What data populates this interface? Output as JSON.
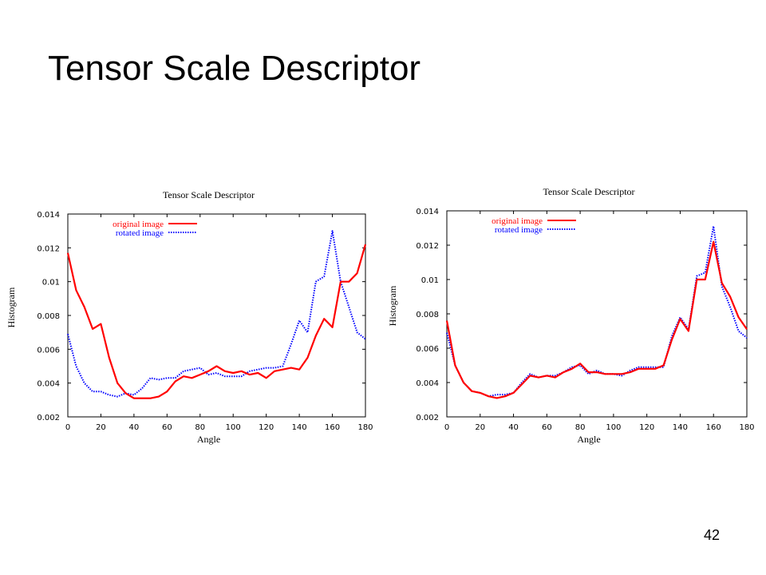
{
  "slide": {
    "title": "Tensor Scale Descriptor",
    "page_number": "42"
  },
  "colors": {
    "original": "#ff0000",
    "rotated": "#0000ff"
  },
  "chart_data": [
    {
      "type": "line",
      "title": "Tensor Scale Descriptor",
      "xlabel": "Angle",
      "ylabel": "Histogram",
      "xlim": [
        0,
        180
      ],
      "ylim": [
        0.002,
        0.014
      ],
      "xticks": [
        "0",
        "20",
        "40",
        "60",
        "80",
        "100",
        "120",
        "140",
        "160",
        "180"
      ],
      "yticks": [
        "0.002",
        "0.004",
        "0.006",
        "0.008",
        "0.01",
        "0.012",
        "0.014"
      ],
      "grid": false,
      "legend_position": "top-left",
      "x": [
        0,
        5,
        10,
        15,
        20,
        25,
        30,
        35,
        40,
        45,
        50,
        55,
        60,
        65,
        70,
        75,
        80,
        85,
        90,
        95,
        100,
        105,
        110,
        115,
        120,
        125,
        130,
        135,
        140,
        145,
        150,
        155,
        160,
        165,
        170,
        175,
        180
      ],
      "series": [
        {
          "name": "original image",
          "color": "#ff0000",
          "style": "solid",
          "values": [
            0.0117,
            0.0095,
            0.0085,
            0.0072,
            0.0075,
            0.0055,
            0.004,
            0.0034,
            0.0031,
            0.0031,
            0.0031,
            0.0032,
            0.0035,
            0.0041,
            0.0044,
            0.0043,
            0.0045,
            0.0047,
            0.005,
            0.0047,
            0.0046,
            0.0047,
            0.0045,
            0.0046,
            0.0043,
            0.0047,
            0.0048,
            0.0049,
            0.0048,
            0.0055,
            0.0068,
            0.0078,
            0.0073,
            0.01,
            0.01,
            0.0105,
            0.0122
          ]
        },
        {
          "name": "rotated image",
          "color": "#0000ff",
          "style": "dotted",
          "values": [
            0.0069,
            0.005,
            0.004,
            0.0035,
            0.0035,
            0.0033,
            0.0032,
            0.0034,
            0.0033,
            0.0037,
            0.0043,
            0.0042,
            0.0043,
            0.0043,
            0.0047,
            0.0048,
            0.0049,
            0.0045,
            0.0046,
            0.0044,
            0.0044,
            0.0044,
            0.0047,
            0.0048,
            0.0049,
            0.0049,
            0.005,
            0.0063,
            0.0077,
            0.007,
            0.01,
            0.0103,
            0.013,
            0.01,
            0.0085,
            0.007,
            0.0066
          ]
        }
      ]
    },
    {
      "type": "line",
      "title": "Tensor Scale Descriptor",
      "xlabel": "Angle",
      "ylabel": "Histogram",
      "xlim": [
        0,
        180
      ],
      "ylim": [
        0.002,
        0.014
      ],
      "xticks": [
        "0",
        "20",
        "40",
        "60",
        "80",
        "100",
        "120",
        "140",
        "160",
        "180"
      ],
      "yticks": [
        "0.002",
        "0.004",
        "0.006",
        "0.008",
        "0.01",
        "0.012",
        "0.014"
      ],
      "grid": false,
      "legend_position": "top-left",
      "x": [
        0,
        5,
        10,
        15,
        20,
        25,
        30,
        35,
        40,
        45,
        50,
        55,
        60,
        65,
        70,
        75,
        80,
        85,
        90,
        95,
        100,
        105,
        110,
        115,
        120,
        125,
        130,
        135,
        140,
        145,
        150,
        155,
        160,
        165,
        170,
        175,
        180
      ],
      "series": [
        {
          "name": "original image",
          "color": "#ff0000",
          "style": "solid",
          "values": [
            0.0076,
            0.005,
            0.004,
            0.0035,
            0.0034,
            0.0032,
            0.0031,
            0.0032,
            0.0034,
            0.0039,
            0.0044,
            0.0043,
            0.0044,
            0.0043,
            0.0046,
            0.0048,
            0.0051,
            0.0046,
            0.0046,
            0.0045,
            0.0045,
            0.0045,
            0.0046,
            0.0048,
            0.0048,
            0.0048,
            0.005,
            0.0065,
            0.0077,
            0.007,
            0.01,
            0.01,
            0.0122,
            0.0098,
            0.009,
            0.0078,
            0.0071
          ]
        },
        {
          "name": "rotated image",
          "color": "#0000ff",
          "style": "dotted",
          "values": [
            0.0069,
            0.005,
            0.004,
            0.0035,
            0.0034,
            0.0032,
            0.0033,
            0.0033,
            0.0034,
            0.004,
            0.0045,
            0.0043,
            0.0044,
            0.0044,
            0.0046,
            0.0049,
            0.005,
            0.0045,
            0.0047,
            0.0045,
            0.0045,
            0.0044,
            0.0047,
            0.0049,
            0.0049,
            0.0049,
            0.0049,
            0.0067,
            0.0078,
            0.0071,
            0.0102,
            0.0104,
            0.0131,
            0.0096,
            0.0084,
            0.007,
            0.0066
          ]
        }
      ]
    }
  ]
}
